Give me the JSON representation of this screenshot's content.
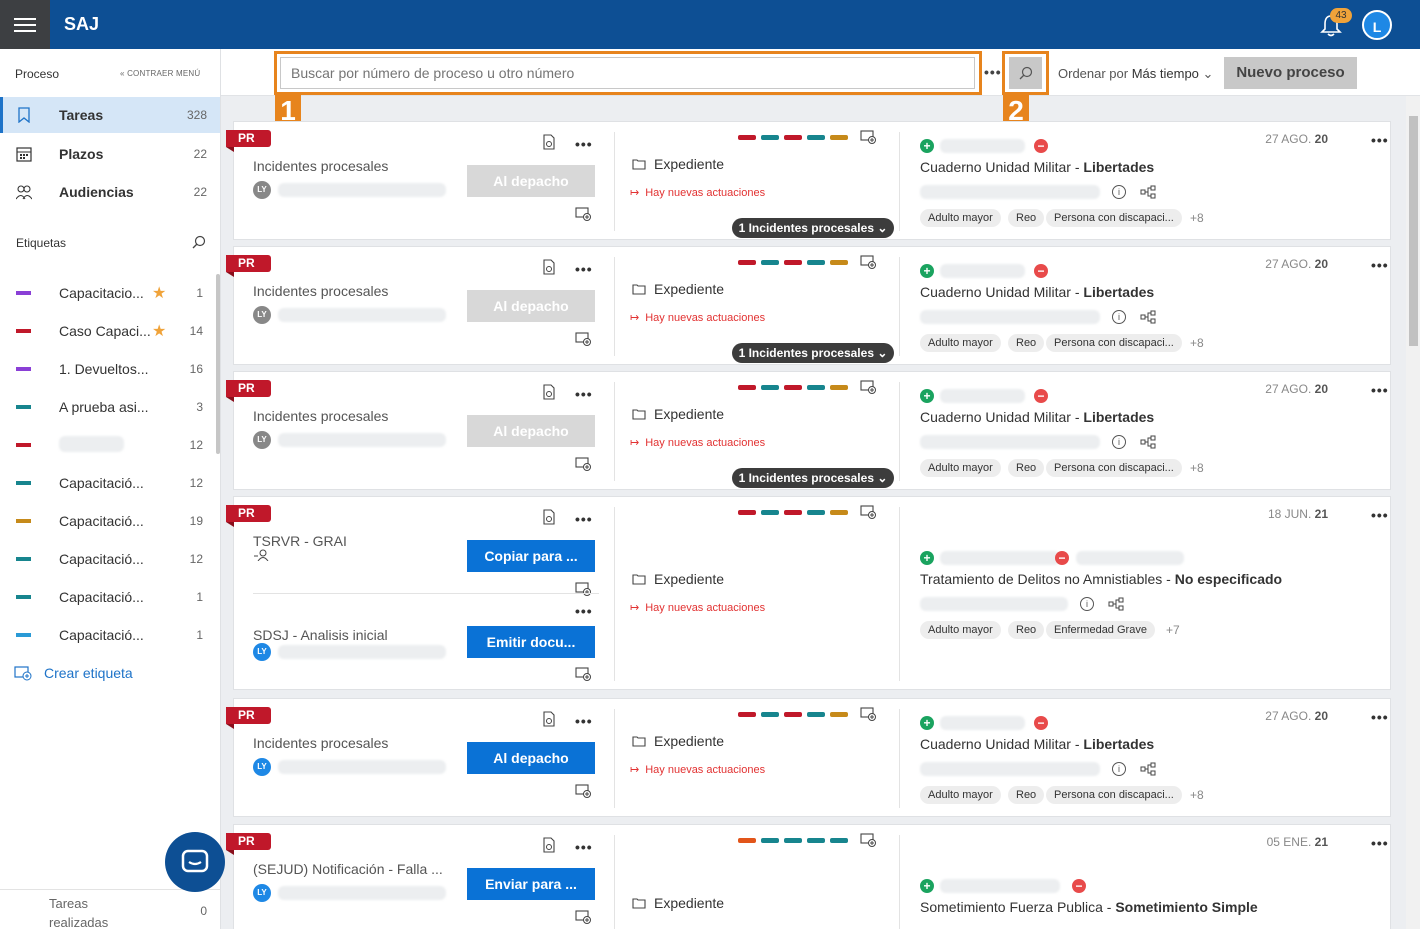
{
  "app": {
    "title": "SAJ",
    "notifications": "43",
    "user_initial": "L"
  },
  "sidebar": {
    "section": "Proceso",
    "collapse": "CONTRAER MENÚ",
    "nav": [
      {
        "label": "Tareas",
        "count": "328"
      },
      {
        "label": "Plazos",
        "count": "22"
      },
      {
        "label": "Audiencias",
        "count": "22"
      }
    ],
    "tags_title": "Etiquetas",
    "tags": [
      {
        "label": "Capacitacio...",
        "count": "1",
        "color": "#8a3fd6",
        "star": true
      },
      {
        "label": "Caso Capaci...",
        "count": "14",
        "color": "#c0182a",
        "star": true
      },
      {
        "label": "1. Devueltos...",
        "count": "16",
        "color": "#8a3fd6",
        "star": false
      },
      {
        "label": "A prueba asi...",
        "count": "3",
        "color": "#17858e",
        "star": false
      },
      {
        "label": "",
        "count": "12",
        "color": "#c0182a",
        "star": false
      },
      {
        "label": "Capacitació...",
        "count": "12",
        "color": "#17858e",
        "star": false
      },
      {
        "label": "Capacitació...",
        "count": "19",
        "color": "#c68a1a",
        "star": false
      },
      {
        "label": "Capacitació...",
        "count": "12",
        "color": "#17858e",
        "star": false
      },
      {
        "label": "Capacitació...",
        "count": "1",
        "color": "#17858e",
        "star": false
      },
      {
        "label": "Capacitació...",
        "count": "1",
        "color": "#2a9ad6",
        "star": false
      }
    ],
    "create_tag": "Crear etiqueta",
    "done_label": "Tareas realizadas",
    "done_count": "0"
  },
  "toolbar": {
    "search_placeholder": "Buscar por número de proceso u otro número",
    "sort_prefix": "Ordenar por",
    "sort_value": "Más tiempo",
    "new_button": "Nuevo proceso",
    "markers": [
      "1",
      "2"
    ]
  },
  "cards": [
    {
      "badge": "PR",
      "task": "Incidentes procesales",
      "initials": "LY",
      "action": "Al depacho",
      "action_enabled": false,
      "folder": "Expediente",
      "news": "Hay nuevas actuaciones",
      "pill": "1 Incidentes procesales",
      "date_day": "27 AGO.",
      "date_year": "20",
      "title_main": "Cuaderno Unidad Militar - ",
      "title_bold": "Libertades",
      "chips": [
        "Adulto mayor",
        "Reo",
        "Persona con discapaci..."
      ],
      "more": "+8"
    },
    {
      "badge": "PR",
      "task": "Incidentes procesales",
      "initials": "LY",
      "action": "Al depacho",
      "action_enabled": false,
      "folder": "Expediente",
      "news": "Hay nuevas actuaciones",
      "pill": "1 Incidentes procesales",
      "date_day": "27 AGO.",
      "date_year": "20",
      "title_main": "Cuaderno Unidad Militar - ",
      "title_bold": "Libertades",
      "chips": [
        "Adulto mayor",
        "Reo",
        "Persona con discapaci..."
      ],
      "more": "+8"
    },
    {
      "badge": "PR",
      "task": "Incidentes procesales",
      "initials": "LY",
      "action": "Al depacho",
      "action_enabled": false,
      "folder": "Expediente",
      "news": "Hay nuevas actuaciones",
      "pill": "1 Incidentes procesales",
      "date_day": "27 AGO.",
      "date_year": "20",
      "title_main": "Cuaderno Unidad Militar - ",
      "title_bold": "Libertades",
      "chips": [
        "Adulto mayor",
        "Reo",
        "Persona con discapaci..."
      ],
      "more": "+8"
    },
    {
      "badge": "PR",
      "task": "TSRVR - GRAI",
      "initials": "",
      "action": "Copiar para ...",
      "action_enabled": true,
      "task2": "SDSJ - Analisis inicial",
      "initials2": "LY",
      "action2": "Emitir docu...",
      "folder": "Expediente",
      "news": "Hay nuevas actuaciones",
      "date_day": "18 JUN.",
      "date_year": "21",
      "title_main": "Tratamiento de Delitos no Amnistiables - ",
      "title_bold": "No especificado",
      "chips": [
        "Adulto mayor",
        "Reo",
        "Enfermedad Grave"
      ],
      "more": "+7"
    },
    {
      "badge": "PR",
      "task": "Incidentes procesales",
      "initials": "LY",
      "action": "Al depacho",
      "action_enabled": true,
      "folder": "Expediente",
      "news": "Hay nuevas actuaciones",
      "date_day": "27 AGO.",
      "date_year": "20",
      "title_main": "Cuaderno Unidad Militar - ",
      "title_bold": "Libertades",
      "chips": [
        "Adulto mayor",
        "Reo",
        "Persona con discapaci..."
      ],
      "more": "+8"
    },
    {
      "badge": "PR",
      "task": "(SEJUD) Notificación - Falla ...",
      "initials": "LY",
      "action": "Enviar para ...",
      "action_enabled": true,
      "folder": "Expediente",
      "date_day": "05 ENE.",
      "date_year": "21",
      "title_main": "Sometimiento Fuerza Publica - ",
      "title_bold": "Sometimiento Simple"
    }
  ],
  "colors": {
    "brand": "#0d4f94",
    "accent": "#e7841d",
    "primary_button": "#0a72d6",
    "badge_red": "#c0182a"
  }
}
